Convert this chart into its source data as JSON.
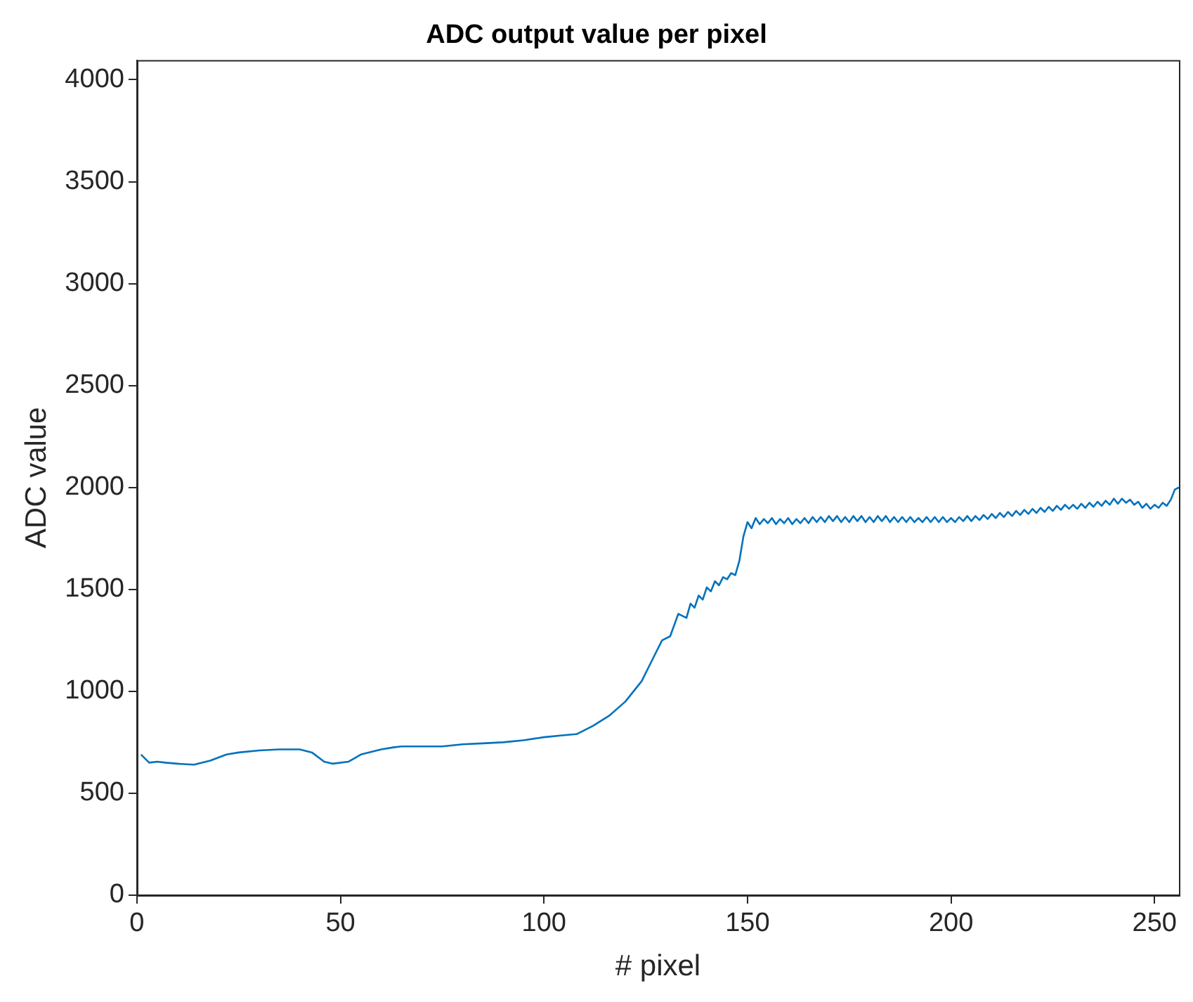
{
  "chart_data": {
    "type": "line",
    "title": "ADC output value per pixel",
    "xlabel": "# pixel",
    "ylabel": "ADC value",
    "xlim": [
      0,
      256
    ],
    "ylim": [
      0,
      4096
    ],
    "xticks": [
      0,
      50,
      100,
      150,
      200,
      250
    ],
    "yticks": [
      0,
      500,
      1000,
      1500,
      2000,
      2500,
      3000,
      3500,
      4000
    ],
    "grid": false,
    "legend": false,
    "series": [
      {
        "color": "#0072bd",
        "x": [
          1,
          3,
          5,
          7,
          10,
          14,
          18,
          22,
          25,
          30,
          35,
          40,
          43,
          46,
          48,
          52,
          55,
          60,
          63,
          65,
          70,
          75,
          80,
          85,
          90,
          95,
          100,
          105,
          108,
          112,
          116,
          120,
          124,
          127,
          129,
          131,
          133,
          135,
          136,
          137,
          138,
          139,
          140,
          141,
          142,
          143,
          144,
          145,
          146,
          147,
          148,
          149,
          150,
          151,
          152,
          153,
          154,
          155,
          156,
          157,
          158,
          159,
          160,
          161,
          162,
          163,
          164,
          165,
          166,
          167,
          168,
          169,
          170,
          171,
          172,
          173,
          174,
          175,
          176,
          177,
          178,
          179,
          180,
          181,
          182,
          183,
          184,
          185,
          186,
          187,
          188,
          189,
          190,
          191,
          192,
          193,
          194,
          195,
          196,
          197,
          198,
          199,
          200,
          201,
          202,
          203,
          204,
          205,
          206,
          207,
          208,
          209,
          210,
          211,
          212,
          213,
          214,
          215,
          216,
          217,
          218,
          219,
          220,
          221,
          222,
          223,
          224,
          225,
          226,
          227,
          228,
          229,
          230,
          231,
          232,
          233,
          234,
          235,
          236,
          237,
          238,
          239,
          240,
          241,
          242,
          243,
          244,
          245,
          246,
          247,
          248,
          249,
          250,
          251,
          252,
          253,
          254,
          255,
          256
        ],
        "values": [
          690,
          650,
          655,
          650,
          645,
          640,
          660,
          690,
          700,
          710,
          715,
          715,
          700,
          655,
          645,
          655,
          690,
          715,
          725,
          730,
          730,
          730,
          740,
          745,
          750,
          760,
          775,
          785,
          790,
          830,
          880,
          950,
          1050,
          1170,
          1250,
          1270,
          1380,
          1360,
          1430,
          1410,
          1470,
          1450,
          1510,
          1490,
          1540,
          1520,
          1560,
          1550,
          1580,
          1570,
          1640,
          1760,
          1830,
          1800,
          1850,
          1820,
          1845,
          1825,
          1850,
          1820,
          1845,
          1825,
          1850,
          1820,
          1845,
          1825,
          1850,
          1825,
          1855,
          1830,
          1855,
          1830,
          1860,
          1835,
          1860,
          1830,
          1855,
          1830,
          1860,
          1835,
          1860,
          1830,
          1855,
          1830,
          1860,
          1835,
          1860,
          1830,
          1855,
          1830,
          1855,
          1830,
          1855,
          1830,
          1850,
          1830,
          1855,
          1830,
          1855,
          1830,
          1855,
          1830,
          1850,
          1830,
          1855,
          1835,
          1860,
          1835,
          1860,
          1840,
          1865,
          1845,
          1870,
          1850,
          1875,
          1855,
          1880,
          1860,
          1885,
          1865,
          1890,
          1870,
          1895,
          1875,
          1900,
          1880,
          1905,
          1885,
          1910,
          1890,
          1915,
          1895,
          1915,
          1895,
          1920,
          1900,
          1925,
          1905,
          1930,
          1910,
          1935,
          1915,
          1945,
          1920,
          1945,
          1925,
          1940,
          1915,
          1930,
          1900,
          1920,
          1895,
          1915,
          1900,
          1925,
          1910,
          1940,
          1990,
          2000
        ]
      }
    ]
  }
}
